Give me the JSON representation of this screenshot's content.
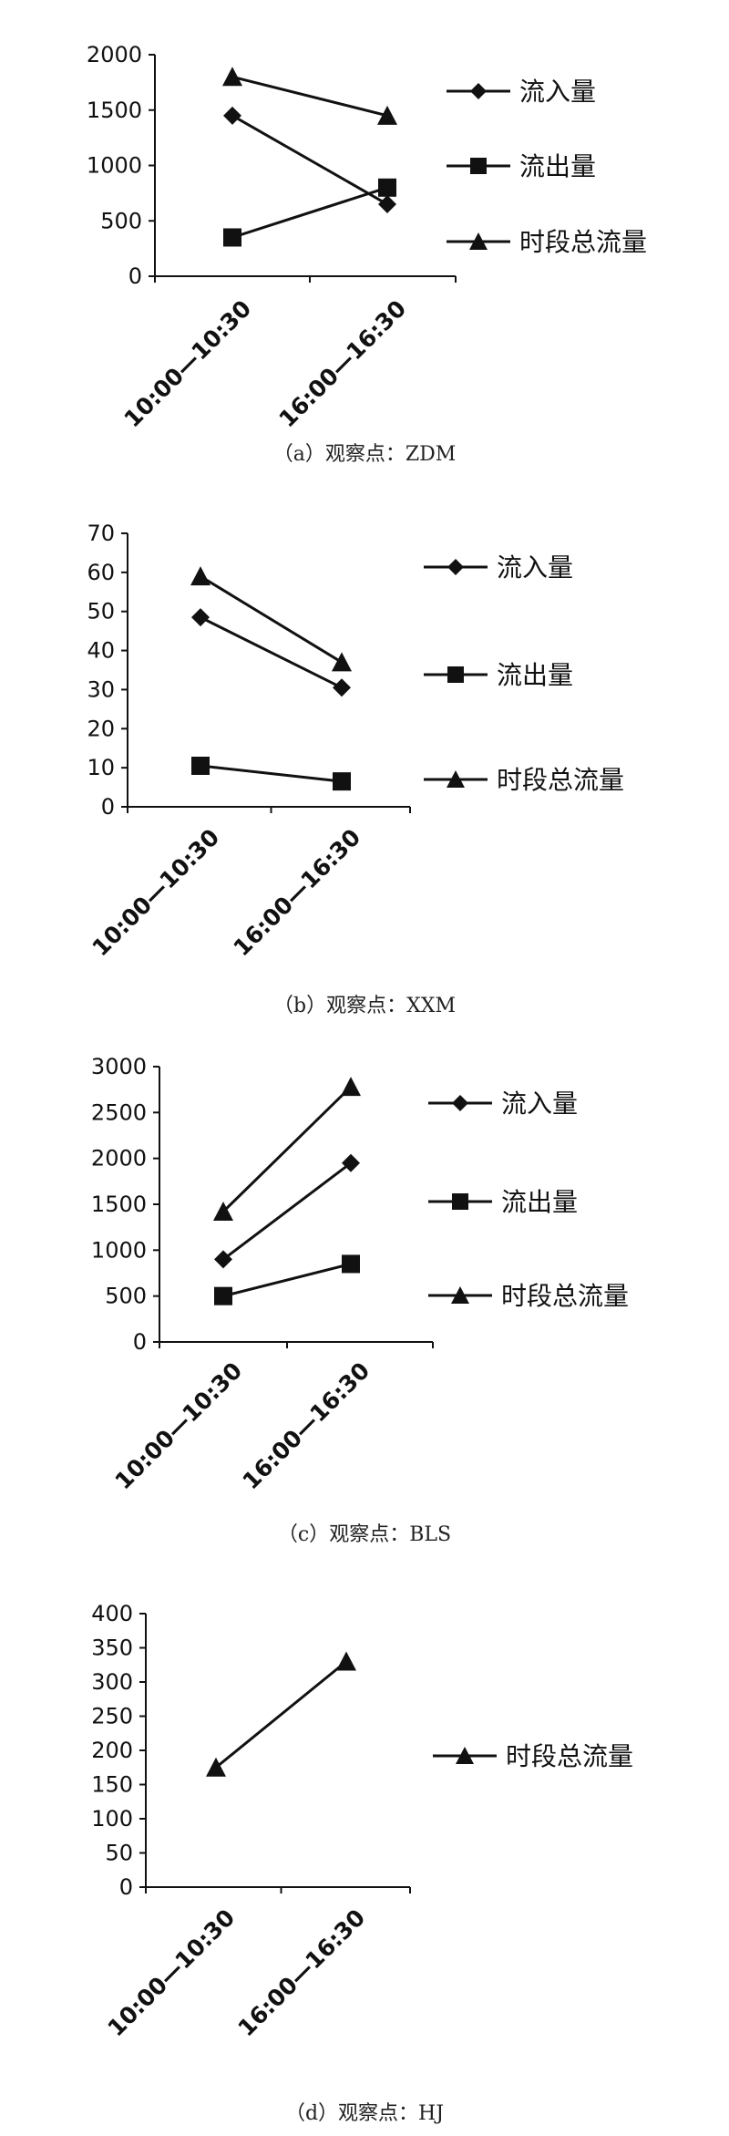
{
  "chart_data": [
    {
      "type": "line",
      "caption": "（a）观察点：ZDM",
      "categories": [
        "10:00—10:30",
        "16:00—16:30"
      ],
      "ylim": [
        0,
        2000
      ],
      "yticks": [
        0,
        500,
        1000,
        1500,
        2000
      ],
      "grid": false,
      "legend_position": "right",
      "series": [
        {
          "name": "流入量",
          "marker": "diamond",
          "values": [
            1450,
            650
          ]
        },
        {
          "name": "流出量",
          "marker": "square",
          "values": [
            350,
            800
          ]
        },
        {
          "name": "时段总流量",
          "marker": "triangle",
          "values": [
            1800,
            1450
          ]
        }
      ]
    },
    {
      "type": "line",
      "caption": "（b）观察点：XXM",
      "categories": [
        "10:00—10:30",
        "16:00—16:30"
      ],
      "ylim": [
        0,
        70
      ],
      "yticks": [
        0,
        10,
        20,
        30,
        40,
        50,
        60,
        70
      ],
      "grid": false,
      "legend_position": "right",
      "series": [
        {
          "name": "流入量",
          "marker": "diamond",
          "values": [
            48.5,
            30.5
          ]
        },
        {
          "name": "流出量",
          "marker": "square",
          "values": [
            10.5,
            6.5
          ]
        },
        {
          "name": "时段总流量",
          "marker": "triangle",
          "values": [
            59,
            37
          ]
        }
      ]
    },
    {
      "type": "line",
      "caption": "（c）观察点：BLS",
      "categories": [
        "10:00—10:30",
        "16:00—16:30"
      ],
      "ylim": [
        0,
        3000
      ],
      "yticks": [
        0,
        500,
        1000,
        1500,
        2000,
        2500,
        3000
      ],
      "grid": false,
      "legend_position": "right",
      "series": [
        {
          "name": "流入量",
          "marker": "diamond",
          "values": [
            900,
            1950
          ]
        },
        {
          "name": "流出量",
          "marker": "square",
          "values": [
            500,
            850
          ]
        },
        {
          "name": "时段总流量",
          "marker": "triangle",
          "values": [
            1420,
            2780
          ]
        }
      ]
    },
    {
      "type": "line",
      "caption": "（d）观察点：HJ",
      "categories": [
        "10:00—10:30",
        "16:00—16:30"
      ],
      "ylim": [
        0,
        400
      ],
      "yticks": [
        0,
        50,
        100,
        150,
        200,
        250,
        300,
        350,
        400
      ],
      "grid": false,
      "legend_position": "right",
      "series": [
        {
          "name": "时段总流量",
          "marker": "triangle",
          "values": [
            175,
            330
          ]
        }
      ]
    }
  ]
}
